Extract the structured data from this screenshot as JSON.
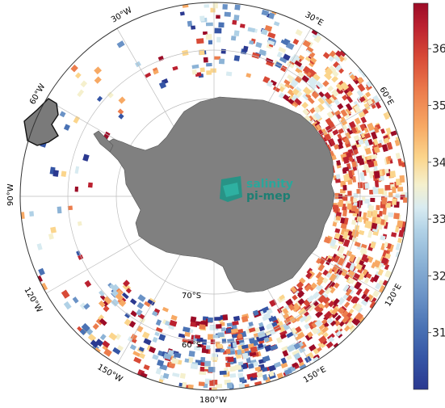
{
  "map": {
    "projection": "south-polar-stereographic",
    "longitude_labels": [
      "30°W",
      "30°E",
      "60°W",
      "60°E",
      "90°W",
      "90°E",
      "120°W",
      "120°E",
      "150°W",
      "150°E",
      "180°W"
    ],
    "latitude_labels": [
      "70°S",
      "60°S"
    ]
  },
  "logo": {
    "line1": "salinity",
    "line2": "pi-mep"
  },
  "colorbar": {
    "ticks": [
      "36",
      "35",
      "34",
      "33",
      "32",
      "31"
    ],
    "tick_values": [
      36,
      35,
      34,
      33,
      32,
      31
    ],
    "range": [
      30.0,
      36.8
    ],
    "colors": [
      "#2b3990",
      "#3555a5",
      "#4a72b4",
      "#6a92c6",
      "#8cb3d6",
      "#b0d1e6",
      "#d8ebf1",
      "#f5f0cd",
      "#fbd58c",
      "#f7a964",
      "#ec7d4d",
      "#d84a37",
      "#bb2130",
      "#9c0c27"
    ]
  },
  "colors": {
    "land": "#808080",
    "grid": "#bdbdbd",
    "frame": "#333333"
  }
}
